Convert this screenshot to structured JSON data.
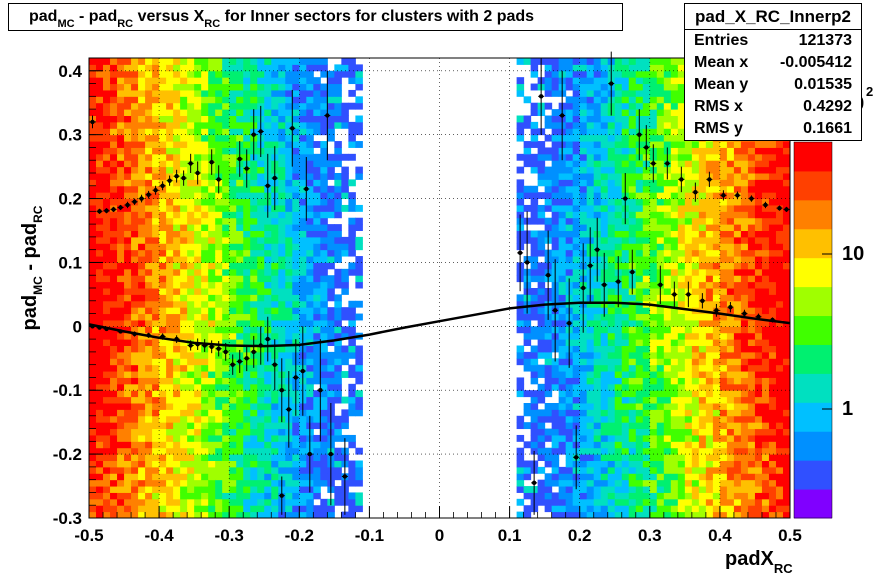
{
  "title": {
    "parts": [
      {
        "t": "pad",
        "sub": false
      },
      {
        "t": "MC",
        "sub": true
      },
      {
        "t": " - pad",
        "sub": false
      },
      {
        "t": "RC",
        "sub": true
      },
      {
        "t": " versus X",
        "sub": false
      },
      {
        "t": "RC",
        "sub": true
      },
      {
        "t": " for Inner sectors for clusters with 2 pads",
        "sub": false
      }
    ]
  },
  "stats": {
    "name": "pad_X_RC_Innerp2",
    "rows": [
      {
        "label": "Entries",
        "value": "121373"
      },
      {
        "label": "Mean x",
        "value": "-0.005412"
      },
      {
        "label": "Mean y",
        "value": "0.01535"
      },
      {
        "label": "RMS x",
        "value": "0.4292"
      },
      {
        "label": "RMS y",
        "value": "0.1661"
      }
    ]
  },
  "chart_data": {
    "type": "heatmap",
    "xlabel_main": "padX",
    "xlabel_sub": "RC",
    "ylabel_parts": [
      {
        "t": "pad",
        "sub": false
      },
      {
        "t": "MC",
        "sub": true
      },
      {
        "t": " - pad",
        "sub": false
      },
      {
        "t": "RC",
        "sub": true
      }
    ],
    "xlim": [
      -0.5,
      0.5
    ],
    "ylim": [
      -0.3,
      0.42
    ],
    "x_ticks": [
      -0.5,
      -0.4,
      -0.3,
      -0.2,
      -0.1,
      0,
      0.1,
      0.2,
      0.3,
      0.4,
      0.5
    ],
    "x_tick_labels": [
      "-0.5",
      "-0.4",
      "-0.3",
      "-0.2",
      "-0.1",
      "0",
      "0.1",
      "0.2",
      "0.3",
      "0.4",
      "0.5"
    ],
    "y_ticks": [
      -0.3,
      -0.2,
      -0.1,
      0,
      0.1,
      0.2,
      0.3,
      0.4
    ],
    "y_tick_labels": [
      "-0.3",
      "-0.2",
      "-0.1",
      "0",
      "0.1",
      "0.2",
      "0.3",
      "0.4"
    ],
    "grid": true,
    "z_scale": "log",
    "z_tick_labels": [
      "1",
      "10",
      "10"
    ],
    "z_exponent": "2",
    "palette": [
      "#8000ff",
      "#3050ff",
      "#0090ff",
      "#00c0ff",
      "#00e0c0",
      "#00f070",
      "#40ff00",
      "#a0ff00",
      "#ffff00",
      "#ffc000",
      "#ff8000",
      "#ff4000",
      "#ff0000"
    ],
    "profile_points": [
      {
        "x": -0.495,
        "y": 0.32,
        "e": 0.01
      },
      {
        "x": -0.485,
        "y": 0.18,
        "e": 0.004
      },
      {
        "x": -0.475,
        "y": 0.181,
        "e": 0.004
      },
      {
        "x": -0.465,
        "y": 0.183,
        "e": 0.004
      },
      {
        "x": -0.455,
        "y": 0.186,
        "e": 0.004
      },
      {
        "x": -0.445,
        "y": 0.19,
        "e": 0.005
      },
      {
        "x": -0.435,
        "y": 0.195,
        "e": 0.005
      },
      {
        "x": -0.425,
        "y": 0.2,
        "e": 0.006
      },
      {
        "x": -0.415,
        "y": 0.206,
        "e": 0.006
      },
      {
        "x": -0.405,
        "y": 0.213,
        "e": 0.007
      },
      {
        "x": -0.395,
        "y": 0.22,
        "e": 0.007
      },
      {
        "x": -0.385,
        "y": 0.228,
        "e": 0.008
      },
      {
        "x": -0.375,
        "y": 0.235,
        "e": 0.01
      },
      {
        "x": -0.365,
        "y": 0.232,
        "e": 0.012
      },
      {
        "x": -0.355,
        "y": 0.255,
        "e": 0.015
      },
      {
        "x": -0.345,
        "y": 0.24,
        "e": 0.018
      },
      {
        "x": -0.325,
        "y": 0.257,
        "e": 0.02
      },
      {
        "x": -0.315,
        "y": 0.23,
        "e": 0.022
      },
      {
        "x": -0.285,
        "y": 0.262,
        "e": 0.028
      },
      {
        "x": -0.275,
        "y": 0.247,
        "e": 0.03
      },
      {
        "x": -0.265,
        "y": 0.3,
        "e": 0.04
      },
      {
        "x": -0.255,
        "y": 0.305,
        "e": 0.04
      },
      {
        "x": -0.245,
        "y": 0.22,
        "e": 0.05
      },
      {
        "x": -0.235,
        "y": 0.232,
        "e": 0.05
      },
      {
        "x": -0.21,
        "y": 0.31,
        "e": 0.06
      },
      {
        "x": -0.19,
        "y": 0.215,
        "e": 0.05
      },
      {
        "x": -0.16,
        "y": 0.33,
        "e": 0.07
      },
      {
        "x": -0.495,
        "y": -0.0,
        "e": 0.003
      },
      {
        "x": -0.485,
        "y": -0.002,
        "e": 0.003
      },
      {
        "x": -0.475,
        "y": -0.004,
        "e": 0.003
      },
      {
        "x": -0.455,
        "y": -0.008,
        "e": 0.003
      },
      {
        "x": -0.435,
        "y": -0.012,
        "e": 0.004
      },
      {
        "x": -0.415,
        "y": -0.014,
        "e": 0.004
      },
      {
        "x": -0.395,
        "y": -0.016,
        "e": 0.005
      },
      {
        "x": -0.375,
        "y": -0.02,
        "e": 0.006
      },
      {
        "x": -0.355,
        "y": -0.03,
        "e": 0.008
      },
      {
        "x": -0.345,
        "y": -0.028,
        "e": 0.009
      },
      {
        "x": -0.335,
        "y": -0.03,
        "e": 0.01
      },
      {
        "x": -0.325,
        "y": -0.032,
        "e": 0.01
      },
      {
        "x": -0.315,
        "y": -0.035,
        "e": 0.012
      },
      {
        "x": -0.305,
        "y": -0.04,
        "e": 0.014
      },
      {
        "x": -0.295,
        "y": -0.06,
        "e": 0.016
      },
      {
        "x": -0.285,
        "y": -0.055,
        "e": 0.018
      },
      {
        "x": -0.275,
        "y": -0.05,
        "e": 0.02
      },
      {
        "x": -0.265,
        "y": -0.04,
        "e": 0.025
      },
      {
        "x": -0.255,
        "y": -0.03,
        "e": 0.03
      },
      {
        "x": -0.245,
        "y": -0.02,
        "e": 0.035
      },
      {
        "x": -0.235,
        "y": -0.06,
        "e": 0.04
      },
      {
        "x": -0.225,
        "y": -0.1,
        "e": 0.05
      },
      {
        "x": -0.215,
        "y": -0.13,
        "e": 0.06
      },
      {
        "x": -0.205,
        "y": -0.08,
        "e": 0.06
      },
      {
        "x": -0.195,
        "y": -0.07,
        "e": 0.07
      },
      {
        "x": -0.185,
        "y": -0.2,
        "e": 0.06
      },
      {
        "x": -0.225,
        "y": -0.265,
        "e": 0.03
      },
      {
        "x": -0.17,
        "y": -0.1,
        "e": 0.08
      },
      {
        "x": -0.155,
        "y": -0.2,
        "e": 0.08
      },
      {
        "x": -0.135,
        "y": -0.235,
        "e": 0.06
      },
      {
        "x": 0.115,
        "y": 0.115,
        "e": 0.06
      },
      {
        "x": 0.125,
        "y": 0.1,
        "e": 0.08
      },
      {
        "x": 0.135,
        "y": -0.245,
        "e": 0.05
      },
      {
        "x": 0.145,
        "y": 0.36,
        "e": 0.06
      },
      {
        "x": 0.155,
        "y": 0.08,
        "e": 0.07
      },
      {
        "x": 0.165,
        "y": 0.025,
        "e": 0.08
      },
      {
        "x": 0.175,
        "y": 0.33,
        "e": 0.07
      },
      {
        "x": 0.185,
        "y": 0.005,
        "e": 0.07
      },
      {
        "x": 0.195,
        "y": -0.205,
        "e": 0.05
      },
      {
        "x": 0.205,
        "y": 0.06,
        "e": 0.07
      },
      {
        "x": 0.215,
        "y": 0.095,
        "e": 0.06
      },
      {
        "x": 0.225,
        "y": 0.12,
        "e": 0.05
      },
      {
        "x": 0.235,
        "y": 0.065,
        "e": 0.05
      },
      {
        "x": 0.245,
        "y": 0.38,
        "e": 0.05
      },
      {
        "x": 0.255,
        "y": 0.07,
        "e": 0.04
      },
      {
        "x": 0.265,
        "y": 0.2,
        "e": 0.04
      },
      {
        "x": 0.275,
        "y": 0.085,
        "e": 0.035
      },
      {
        "x": 0.285,
        "y": 0.3,
        "e": 0.04
      },
      {
        "x": 0.295,
        "y": 0.28,
        "e": 0.035
      },
      {
        "x": 0.305,
        "y": 0.255,
        "e": 0.03
      },
      {
        "x": 0.315,
        "y": 0.065,
        "e": 0.03
      },
      {
        "x": 0.325,
        "y": 0.255,
        "e": 0.025
      },
      {
        "x": 0.335,
        "y": 0.05,
        "e": 0.02
      },
      {
        "x": 0.345,
        "y": 0.23,
        "e": 0.02
      },
      {
        "x": 0.355,
        "y": 0.05,
        "e": 0.02
      },
      {
        "x": 0.365,
        "y": 0.21,
        "e": 0.015
      },
      {
        "x": 0.375,
        "y": 0.04,
        "e": 0.012
      },
      {
        "x": 0.385,
        "y": 0.23,
        "e": 0.012
      },
      {
        "x": 0.395,
        "y": 0.025,
        "e": 0.01
      },
      {
        "x": 0.405,
        "y": 0.205,
        "e": 0.008
      },
      {
        "x": 0.415,
        "y": 0.03,
        "e": 0.008
      },
      {
        "x": 0.425,
        "y": 0.205,
        "e": 0.006
      },
      {
        "x": 0.435,
        "y": 0.02,
        "e": 0.006
      },
      {
        "x": 0.445,
        "y": 0.2,
        "e": 0.005
      },
      {
        "x": 0.455,
        "y": 0.015,
        "e": 0.005
      },
      {
        "x": 0.465,
        "y": 0.19,
        "e": 0.005
      },
      {
        "x": 0.475,
        "y": 0.01,
        "e": 0.004
      },
      {
        "x": 0.485,
        "y": 0.185,
        "e": 0.004
      },
      {
        "x": 0.495,
        "y": 0.183,
        "e": 0.004
      }
    ],
    "fit_curve_points": [
      [
        -0.5,
        0.003
      ],
      [
        -0.45,
        -0.008
      ],
      [
        -0.4,
        -0.018
      ],
      [
        -0.35,
        -0.026
      ],
      [
        -0.3,
        -0.03
      ],
      [
        -0.25,
        -0.031
      ],
      [
        -0.2,
        -0.029
      ],
      [
        -0.15,
        -0.022
      ],
      [
        -0.1,
        -0.013
      ],
      [
        -0.05,
        -0.002
      ],
      [
        0,
        0.008
      ],
      [
        0.05,
        0.018
      ],
      [
        0.1,
        0.028
      ],
      [
        0.15,
        0.034
      ],
      [
        0.2,
        0.037
      ],
      [
        0.25,
        0.037
      ],
      [
        0.3,
        0.034
      ],
      [
        0.35,
        0.027
      ],
      [
        0.4,
        0.02
      ],
      [
        0.45,
        0.012
      ],
      [
        0.5,
        0.005
      ]
    ]
  }
}
